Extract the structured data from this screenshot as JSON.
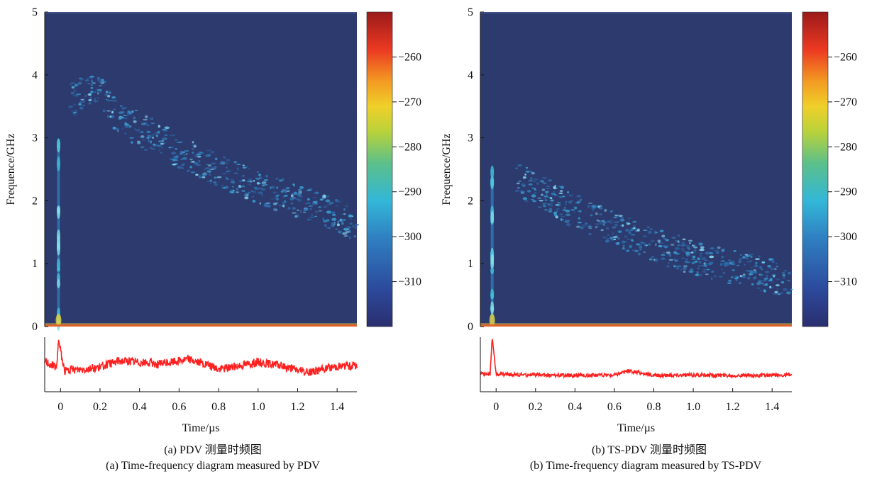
{
  "chart_data": [
    {
      "type": "heatmap",
      "panel": "a",
      "ylabel": "Frequence/GHz",
      "xlabel": "Time/µs",
      "caption_cn": "(a) PDV 测量时频图",
      "caption_en": "(a) Time-frequency diagram measured by PDV",
      "xlim": [
        -0.08,
        1.5
      ],
      "ylim": [
        0,
        5
      ],
      "xticks": [
        "0",
        "0.2",
        "0.4",
        "0.6",
        "0.8",
        "1.0",
        "1.2",
        "1.4"
      ],
      "yticks": [
        "0",
        "1",
        "2",
        "3",
        "4",
        "5"
      ],
      "colorbar": {
        "range": [
          -320,
          -250
        ],
        "ticks": [
          "−260",
          "−270",
          "−280",
          "−290",
          "−300",
          "−310"
        ],
        "tick_values": [
          -260,
          -270,
          -280,
          -290,
          -300,
          -310
        ]
      },
      "vertical_burst": {
        "x": -0.01,
        "y_max": 2.9
      },
      "frequency_trace": {
        "x": [
          0.05,
          0.18,
          0.3,
          0.45,
          0.6,
          0.8,
          1.0,
          1.2,
          1.4,
          1.5
        ],
        "y": [
          3.6,
          3.8,
          3.3,
          3.05,
          2.8,
          2.5,
          2.2,
          2.0,
          1.75,
          1.55
        ]
      },
      "signal_trace": {
        "x": [
          -0.08,
          -0.02,
          -0.01,
          0.02,
          0.2,
          0.3,
          0.5,
          0.65,
          0.8,
          1.0,
          1.1,
          1.25,
          1.4,
          1.5
        ],
        "y": [
          0.55,
          0.4,
          0.95,
          0.35,
          0.42,
          0.55,
          0.48,
          0.58,
          0.38,
          0.52,
          0.46,
          0.32,
          0.44,
          0.45
        ]
      }
    },
    {
      "type": "heatmap",
      "panel": "b",
      "ylabel": "Frequence/GHz",
      "xlabel": "Time/µs",
      "caption_cn": "(b) TS-PDV 测量时频图",
      "caption_en": "(b) Time-frequency diagram measured by TS-PDV",
      "xlim": [
        -0.08,
        1.5
      ],
      "ylim": [
        0,
        5
      ],
      "xticks": [
        "0",
        "0.2",
        "0.4",
        "0.6",
        "0.8",
        "1.0",
        "1.2",
        "1.4"
      ],
      "yticks": [
        "0",
        "1",
        "2",
        "3",
        "4",
        "5"
      ],
      "colorbar": {
        "range": [
          -320,
          -250
        ],
        "ticks": [
          "−260",
          "−270",
          "−280",
          "−290",
          "−300",
          "−310"
        ],
        "tick_values": [
          -260,
          -270,
          -280,
          -290,
          -300,
          -310
        ]
      },
      "vertical_burst": {
        "x": -0.02,
        "y_max": 2.5
      },
      "frequency_trace": {
        "x": [
          0.1,
          0.2,
          0.3,
          0.45,
          0.6,
          0.8,
          1.0,
          1.2,
          1.4,
          1.5
        ],
        "y": [
          2.35,
          2.2,
          2.0,
          1.75,
          1.55,
          1.3,
          1.1,
          0.95,
          0.8,
          0.7
        ]
      },
      "signal_trace": {
        "x": [
          -0.08,
          -0.03,
          -0.02,
          0.0,
          0.2,
          0.4,
          0.6,
          0.67,
          0.8,
          1.0,
          1.2,
          1.4,
          1.5
        ],
        "y": [
          0.28,
          0.3,
          1.0,
          0.28,
          0.27,
          0.26,
          0.27,
          0.35,
          0.26,
          0.27,
          0.26,
          0.26,
          0.27
        ]
      }
    }
  ]
}
